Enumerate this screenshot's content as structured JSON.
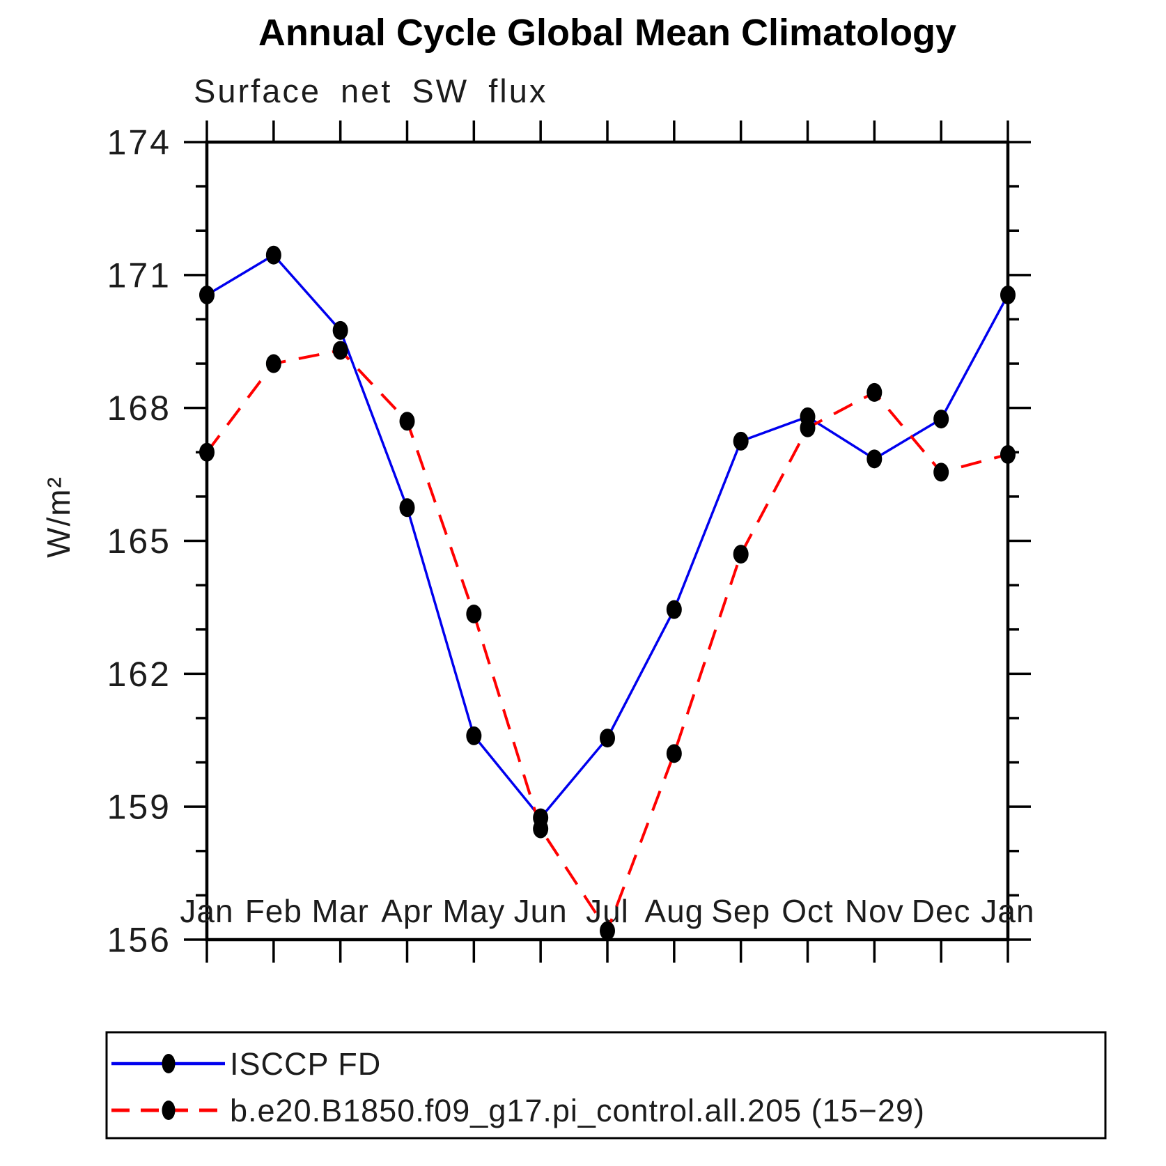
{
  "title": "Annual Cycle Global Mean Climatology",
  "chart_data": {
    "type": "line",
    "title": "Annual Cycle Global Mean Climatology",
    "subtitle": "Surface net SW flux",
    "ylabel": "W/m²",
    "xlabel": "",
    "categories": [
      "Jan",
      "Feb",
      "Mar",
      "Apr",
      "May",
      "Jun",
      "Jul",
      "Aug",
      "Sep",
      "Oct",
      "Nov",
      "Dec",
      "Jan"
    ],
    "ylim": [
      156,
      174
    ],
    "y_major_ticks": [
      156,
      159,
      162,
      165,
      168,
      171,
      174
    ],
    "y_minor_tick_step": 1,
    "grid": false,
    "legend_position": "bottom-left-box",
    "marker": "filled-circle",
    "marker_color": "#000000",
    "axis_color": "#000000",
    "background_color": "#ffffff",
    "series": [
      {
        "name": "ISCCP FD",
        "color": "#0000ee",
        "line_style": "solid",
        "values": [
          170.55,
          171.45,
          169.75,
          165.75,
          160.6,
          158.75,
          160.55,
          163.45,
          167.25,
          167.8,
          166.85,
          167.75,
          170.55
        ]
      },
      {
        "name": "b.e20.B1850.f09_g17.pi_control.all.205 (15−29)",
        "color": "#ff0000",
        "line_style": "dashed",
        "values": [
          167.0,
          169.0,
          169.3,
          167.7,
          163.35,
          158.5,
          156.2,
          160.2,
          164.7,
          167.55,
          168.35,
          166.55,
          166.95
        ]
      }
    ]
  }
}
